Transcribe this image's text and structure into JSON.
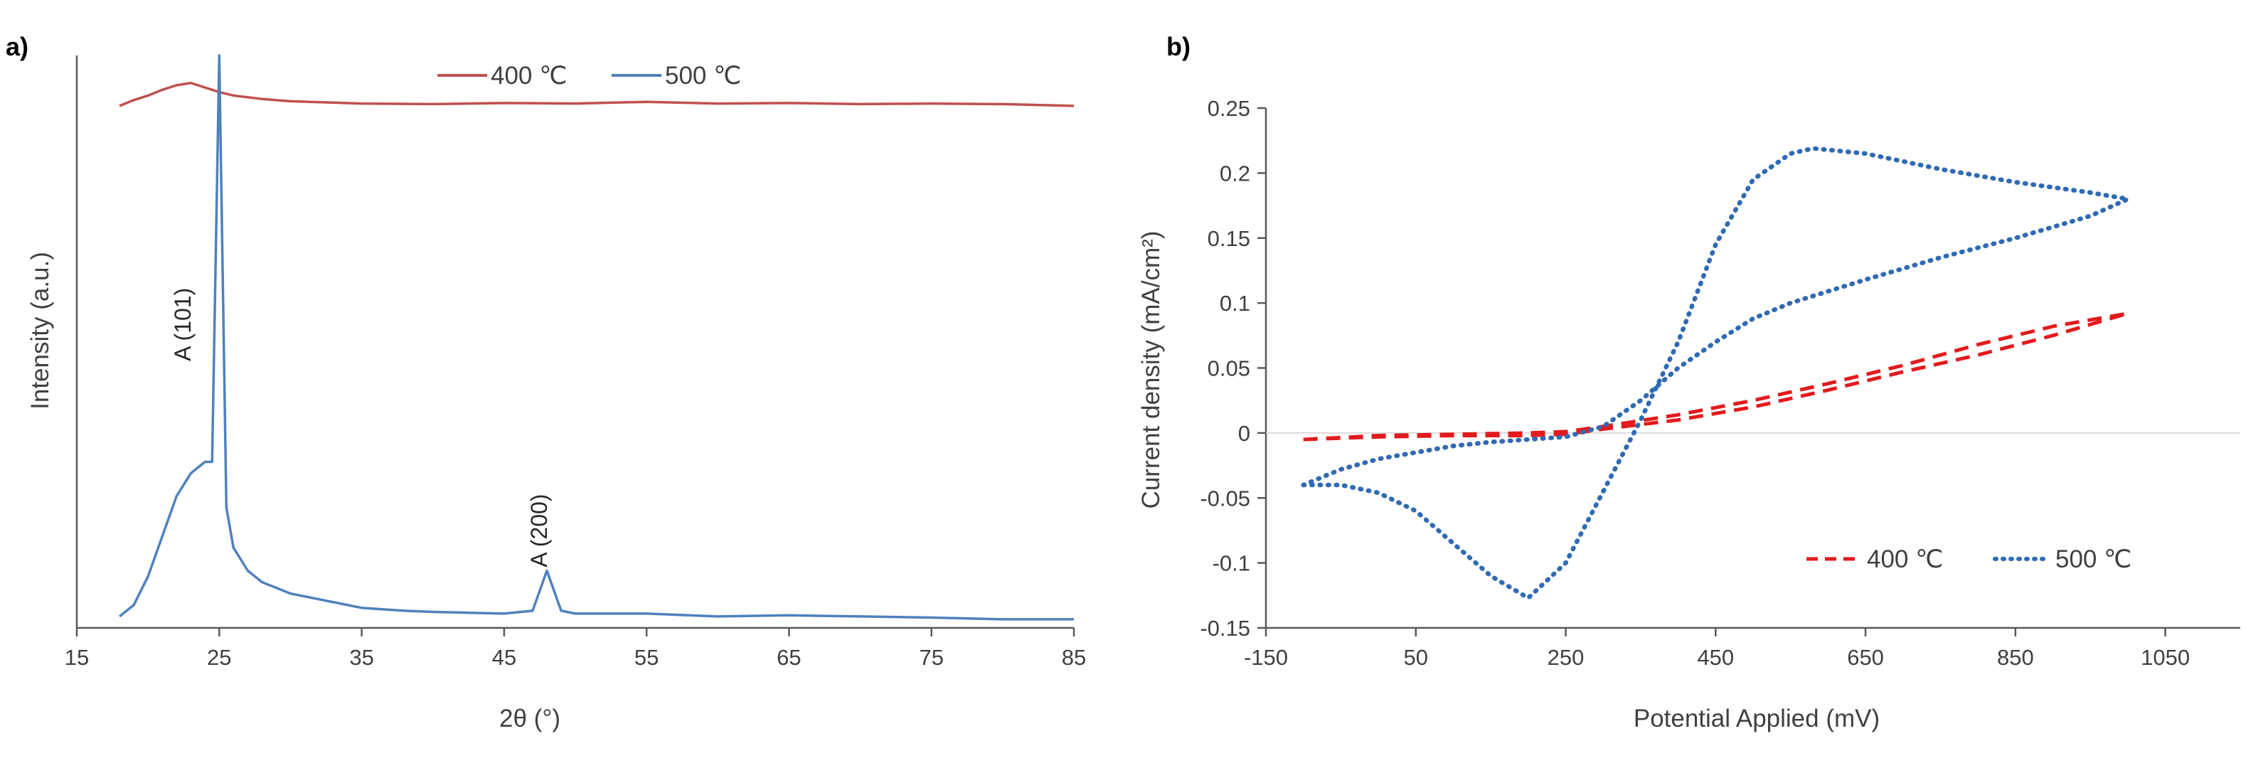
{
  "chart_data": [
    {
      "panel": "a)",
      "type": "line",
      "xlabel": "2θ (°)",
      "ylabel": "Intensity (a.u.)",
      "xlim": [
        15,
        85
      ],
      "x_ticks": [
        "15",
        "25",
        "35",
        "45",
        "55",
        "65",
        "75",
        "85"
      ],
      "ylim": [
        0,
        100
      ],
      "y_tick_labels_shown": false,
      "legend": {
        "placement": "top-center"
      },
      "series": [
        {
          "name": "400 ℃",
          "color": "#c0504d",
          "x": [
            18,
            19,
            20,
            21,
            22,
            23,
            24,
            25,
            26,
            28,
            30,
            35,
            40,
            45,
            50,
            55,
            60,
            65,
            70,
            75,
            80,
            85
          ],
          "y": [
            91.2,
            92.2,
            93.0,
            94.0,
            94.8,
            95.2,
            94.4,
            93.6,
            93.0,
            92.4,
            92.0,
            91.6,
            91.5,
            91.7,
            91.6,
            91.9,
            91.6,
            91.7,
            91.5,
            91.6,
            91.5,
            91.2
          ]
        },
        {
          "name": "500 ℃",
          "color": "#4f81bd",
          "x": [
            18,
            19,
            20,
            21,
            22,
            23,
            24,
            24.5,
            25,
            25.5,
            26,
            27,
            28,
            30,
            32,
            35,
            38,
            40,
            45,
            47,
            48,
            49,
            50,
            55,
            60,
            65,
            70,
            75,
            80,
            85
          ],
          "y": [
            2,
            4,
            9,
            16,
            23,
            27,
            29,
            29,
            100,
            21,
            14,
            10,
            8,
            6,
            5,
            3.5,
            3,
            2.8,
            2.5,
            3,
            10,
            3,
            2.5,
            2.5,
            2,
            2.2,
            2,
            1.8,
            1.5,
            1.5
          ]
        }
      ],
      "annotations": [
        {
          "text": "A (101)",
          "x": 23,
          "y": 53
        },
        {
          "text": "A (200)",
          "x": 48,
          "y": 17
        }
      ]
    },
    {
      "panel": "b)",
      "type": "line",
      "xlabel": "Potential Applied (mV)",
      "ylabel": "Current density (mA/cm²)",
      "xlim": [
        -150,
        1150
      ],
      "x_ticks": [
        "-150",
        "50",
        "250",
        "450",
        "650",
        "850",
        "1050"
      ],
      "ylim": [
        -0.15,
        0.25
      ],
      "y_ticks": [
        "0.25",
        "0.2",
        "0.15",
        "0.1",
        "0.05",
        "0",
        "-0.05",
        "-0.1",
        "-0.15"
      ],
      "legend": {
        "placement": "bottom-right"
      },
      "series": [
        {
          "name": "400 ℃",
          "color": "#e31a1c",
          "style": "dashed",
          "x": [
            -100,
            0,
            100,
            200,
            250,
            300,
            400,
            500,
            600,
            700,
            800,
            900,
            1000,
            1000,
            900,
            800,
            700,
            600,
            500,
            400,
            300,
            250,
            200,
            100,
            0,
            -100
          ],
          "y": [
            -0.005,
            -0.003,
            -0.002,
            -0.002,
            -0.001,
            0.003,
            0.01,
            0.02,
            0.033,
            0.047,
            0.06,
            0.075,
            0.092,
            0.092,
            0.082,
            0.068,
            0.052,
            0.038,
            0.025,
            0.014,
            0.005,
            0.001,
            0.0,
            -0.001,
            -0.002,
            -0.005
          ]
        },
        {
          "name": "500 ℃",
          "color": "#2f6ab3",
          "style": "dotted",
          "x": [
            -100,
            -50,
            0,
            50,
            100,
            150,
            200,
            250,
            300,
            350,
            400,
            450,
            500,
            550,
            580,
            650,
            750,
            850,
            950,
            1000,
            1000,
            950,
            850,
            750,
            650,
            550,
            500,
            450,
            400,
            350,
            300,
            250,
            200,
            150,
            100,
            50,
            0,
            -50,
            -100
          ],
          "y": [
            -0.04,
            -0.04,
            -0.046,
            -0.06,
            -0.085,
            -0.11,
            -0.127,
            -0.1,
            -0.045,
            0.01,
            0.07,
            0.145,
            0.195,
            0.215,
            0.219,
            0.215,
            0.203,
            0.193,
            0.185,
            0.18,
            0.18,
            0.167,
            0.15,
            0.135,
            0.118,
            0.1,
            0.088,
            0.07,
            0.05,
            0.025,
            0.005,
            -0.003,
            -0.005,
            -0.007,
            -0.01,
            -0.015,
            -0.02,
            -0.028,
            -0.04
          ]
        }
      ]
    }
  ]
}
